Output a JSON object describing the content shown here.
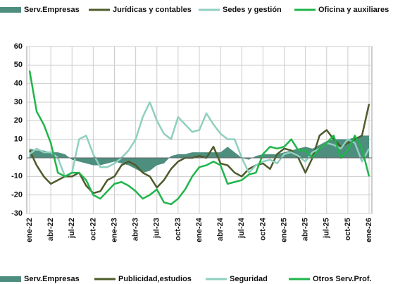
{
  "chart_data": {
    "type": "line",
    "legend_top": [
      "Serv.Empresas",
      "Jurídicas y contables",
      "Sedes y gestión",
      "Oficina y auxiliares"
    ],
    "categories": [
      "ene-22",
      null,
      null,
      "abr-22",
      null,
      null,
      "jul-22",
      null,
      null,
      "oct-22",
      null,
      null,
      "ene-23",
      null,
      null,
      "abr-23",
      null,
      null,
      "jul-23",
      null,
      null,
      "oct-23",
      null,
      null,
      "ene-24",
      null,
      null,
      "abr-24",
      null,
      null,
      "jul-24",
      null,
      null,
      "oct-24",
      null,
      null,
      "ene-25",
      null,
      null,
      "abr-25",
      null,
      null,
      "jul-25",
      null,
      null,
      "oct-25",
      null,
      null,
      "ene-26"
    ],
    "series": [
      {
        "name": "Serv.Empresas",
        "kind": "area",
        "color": "#4e8e7e",
        "values": [
          5,
          4,
          4,
          3,
          3,
          2,
          -1,
          -2,
          -3,
          -4,
          -4,
          -3,
          -2,
          -3,
          -4,
          -6,
          -8,
          -7,
          -4,
          -3,
          1,
          2,
          2,
          3,
          3,
          3,
          3,
          3,
          6,
          3,
          0,
          -1,
          1,
          2,
          2,
          2,
          3,
          4,
          5,
          6,
          5,
          7,
          9,
          10,
          10,
          10,
          11,
          12,
          12
        ]
      },
      {
        "name": "Publicidad,estudios",
        "color": "#4d5b2b",
        "values": [
          4,
          -4,
          -10,
          -14,
          -12,
          -10,
          -10,
          -8,
          -15,
          -19,
          -18,
          -12,
          -10,
          -4,
          -2,
          -4,
          -8,
          -10,
          -16,
          -12,
          -6,
          -2,
          0,
          0,
          1,
          0,
          6,
          -3,
          -4,
          -8,
          -10,
          -6,
          -4,
          -3,
          -6,
          2,
          5,
          4,
          0,
          -8,
          0,
          12,
          15,
          10,
          6,
          8,
          10,
          12,
          29
        ]
      },
      {
        "name": "Seguridad",
        "color": "#8fd0c0",
        "values": [
          2,
          5,
          3,
          3,
          0,
          -10,
          -8,
          10,
          12,
          2,
          -5,
          -5,
          -3,
          0,
          4,
          10,
          22,
          30,
          20,
          13,
          10,
          22,
          18,
          14,
          15,
          24,
          18,
          13,
          10,
          10,
          0,
          -8,
          -4,
          -2,
          -1,
          -3,
          2,
          3,
          1,
          -2,
          3,
          5,
          8,
          7,
          5,
          10,
          8,
          -2,
          5
        ]
      },
      {
        "name": "Otros Serv.Prof.",
        "color": "#1fb54a",
        "values": [
          47,
          25,
          18,
          8,
          -8,
          -10,
          -8,
          -8,
          -12,
          -20,
          -22,
          -18,
          -14,
          -13,
          -15,
          -18,
          -22,
          -20,
          -17,
          -24,
          -25,
          -22,
          -17,
          -10,
          -5,
          -4,
          -2,
          -4,
          -14,
          -13,
          -12,
          -9,
          -8,
          2,
          6,
          5,
          6,
          10,
          4,
          4,
          0,
          5,
          8,
          12,
          0,
          4,
          12,
          5,
          -10
        ]
      }
    ],
    "ylim": [
      -30,
      60
    ],
    "yticks": [
      -30,
      -20,
      -10,
      0,
      10,
      20,
      30,
      40,
      50,
      60
    ],
    "grid": true
  }
}
